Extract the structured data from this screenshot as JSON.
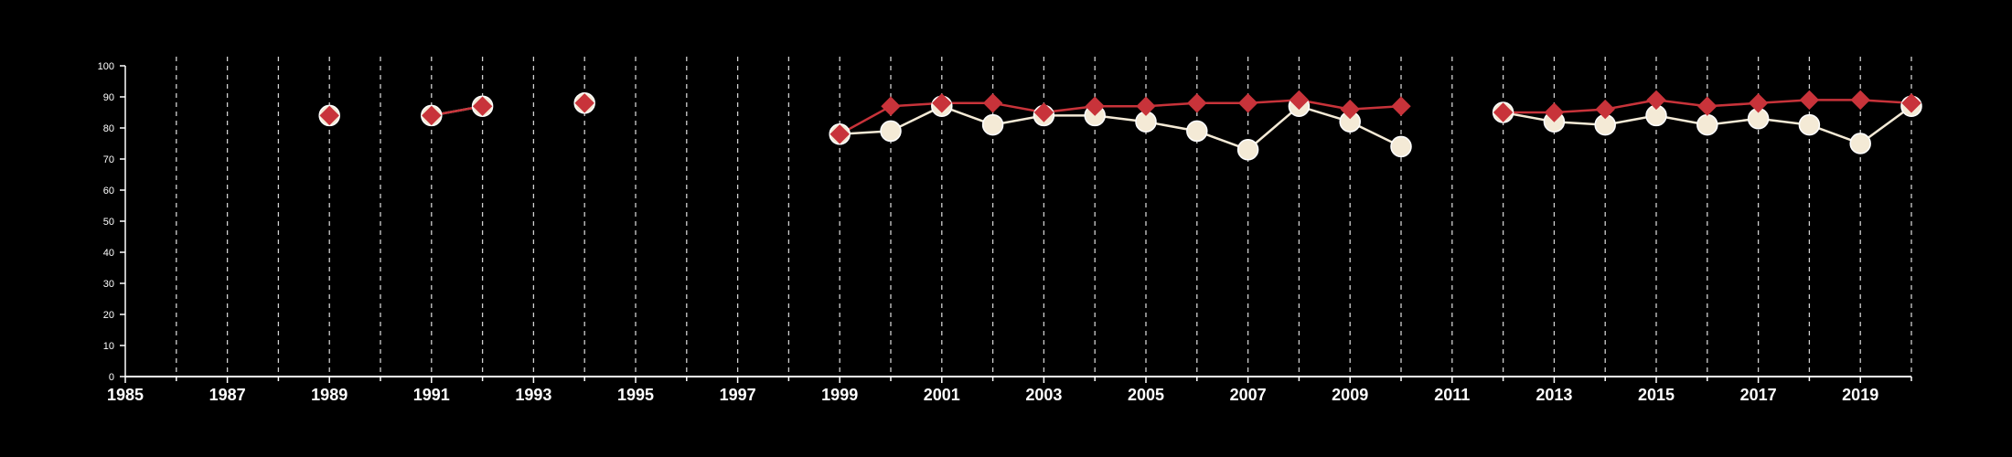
{
  "chart_data": {
    "type": "line",
    "title": "",
    "xlabel": "",
    "ylabel": "",
    "xlim": [
      1985,
      2020
    ],
    "ylim": [
      0,
      100
    ],
    "grid": "vertical-dashed",
    "colors": {
      "background": "#000000",
      "axis": "#ffffff",
      "grid": "#d0d0d0",
      "series_a": "#c8333a",
      "series_b": "#f4ead6"
    },
    "y_ticks": [
      "0",
      "10",
      "20",
      "30",
      "40",
      "50",
      "60",
      "70",
      "80",
      "90",
      "100"
    ],
    "x_tick_labels": [
      "1985",
      "1987",
      "1989",
      "1991",
      "1993",
      "1995",
      "1997",
      "1999",
      "2001",
      "2003",
      "2005",
      "2007",
      "2009",
      "2011",
      "2013",
      "2015",
      "2017",
      "2019"
    ],
    "series": [
      {
        "marker": "diamond",
        "color": "#c8333a",
        "points": [
          {
            "x": 1989,
            "y": 84
          },
          {
            "x": 1991,
            "y": 84
          },
          {
            "x": 1992,
            "y": 87
          },
          {
            "x": 1994,
            "y": 88
          },
          {
            "x": 1999,
            "y": 78
          },
          {
            "x": 2000,
            "y": 87
          },
          {
            "x": 2001,
            "y": 88
          },
          {
            "x": 2002,
            "y": 88
          },
          {
            "x": 2003,
            "y": 85
          },
          {
            "x": 2004,
            "y": 87
          },
          {
            "x": 2005,
            "y": 87
          },
          {
            "x": 2006,
            "y": 88
          },
          {
            "x": 2007,
            "y": 88
          },
          {
            "x": 2008,
            "y": 89
          },
          {
            "x": 2009,
            "y": 86
          },
          {
            "x": 2010,
            "y": 87
          },
          {
            "x": 2012,
            "y": 85
          },
          {
            "x": 2013,
            "y": 85
          },
          {
            "x": 2014,
            "y": 86
          },
          {
            "x": 2015,
            "y": 89
          },
          {
            "x": 2016,
            "y": 87
          },
          {
            "x": 2017,
            "y": 88
          },
          {
            "x": 2018,
            "y": 89
          },
          {
            "x": 2019,
            "y": 89
          },
          {
            "x": 2020,
            "y": 88
          }
        ]
      },
      {
        "marker": "circle",
        "color": "#f4ead6",
        "points": [
          {
            "x": 1989,
            "y": 84
          },
          {
            "x": 1991,
            "y": 84
          },
          {
            "x": 1992,
            "y": 87
          },
          {
            "x": 1994,
            "y": 88
          },
          {
            "x": 1999,
            "y": 78
          },
          {
            "x": 2000,
            "y": 79
          },
          {
            "x": 2001,
            "y": 87
          },
          {
            "x": 2002,
            "y": 81
          },
          {
            "x": 2003,
            "y": 84
          },
          {
            "x": 2004,
            "y": 84
          },
          {
            "x": 2005,
            "y": 82
          },
          {
            "x": 2006,
            "y": 79
          },
          {
            "x": 2007,
            "y": 73
          },
          {
            "x": 2008,
            "y": 87
          },
          {
            "x": 2009,
            "y": 82
          },
          {
            "x": 2010,
            "y": 74
          },
          {
            "x": 2012,
            "y": 85
          },
          {
            "x": 2013,
            "y": 82
          },
          {
            "x": 2014,
            "y": 81
          },
          {
            "x": 2015,
            "y": 84
          },
          {
            "x": 2016,
            "y": 81
          },
          {
            "x": 2017,
            "y": 83
          },
          {
            "x": 2018,
            "y": 81
          },
          {
            "x": 2019,
            "y": 75
          },
          {
            "x": 2020,
            "y": 87
          }
        ]
      }
    ]
  }
}
